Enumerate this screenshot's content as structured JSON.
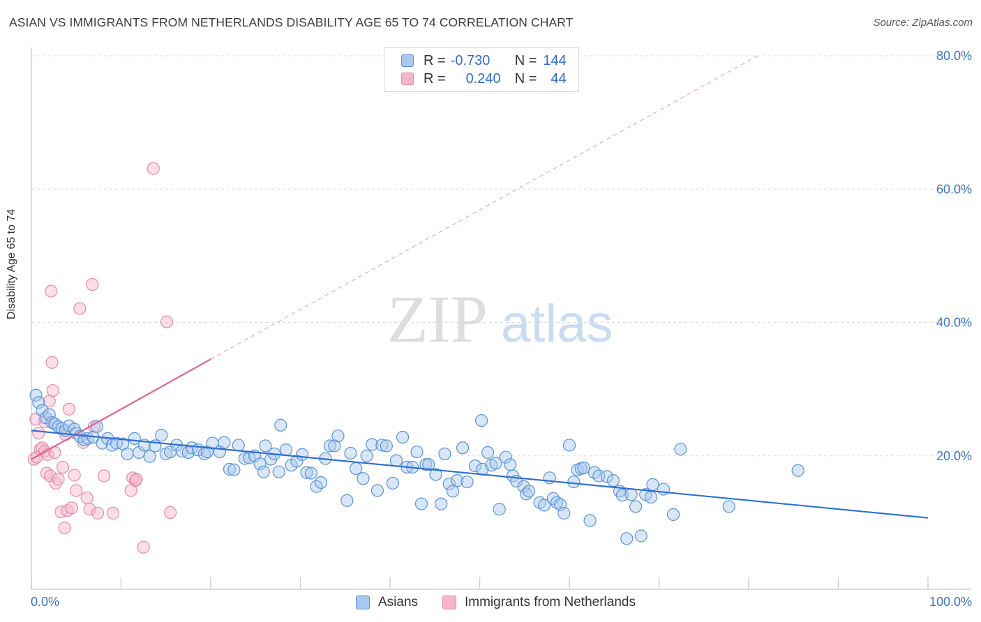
{
  "title": "ASIAN VS IMMIGRANTS FROM NETHERLANDS DISABILITY AGE 65 TO 74 CORRELATION CHART",
  "source": "Source: ZipAtlas.com",
  "watermark": {
    "zip": "ZIP",
    "atlas": "atlas"
  },
  "colors": {
    "blue_fill": "#a9c8f0",
    "blue_stroke": "#5b93d8",
    "blue_line": "#2e6fd0",
    "pink_fill": "#f6b6c9",
    "pink_stroke": "#e98aa7",
    "pink_line": "#e0628f",
    "axis_text": "#3a75c4",
    "grid": "#dcdcdc"
  },
  "stats": {
    "blue": {
      "r_label": "R =",
      "r_value": "-0.730",
      "n_label": "N =",
      "n_value": "144"
    },
    "pink": {
      "r_label": "R =",
      "r_value": "0.240",
      "n_label": "N =",
      "n_value": "44"
    }
  },
  "legend": {
    "asians": "Asians",
    "netherlands": "Immigrants from Netherlands"
  },
  "chart_data": {
    "type": "scatter",
    "xlabel": "",
    "ylabel": "Disability Age 65 to 74",
    "xlim": [
      0,
      105
    ],
    "ylim": [
      0,
      80
    ],
    "x_tick_labels": [
      {
        "value": 0,
        "label": "0.0%"
      },
      {
        "value": 100,
        "label": "100.0%"
      }
    ],
    "y_tick_labels": [
      {
        "value": 20,
        "label": "20.0%"
      },
      {
        "value": 40,
        "label": "40.0%"
      },
      {
        "value": 60,
        "label": "60.0%"
      },
      {
        "value": 80,
        "label": "80.0%"
      }
    ],
    "grid": "horizontal dashed",
    "series": [
      {
        "name": "Asians",
        "trend": [
          [
            0,
            23.8
          ],
          [
            100,
            10.7
          ]
        ],
        "points": [
          [
            0.5,
            29.1
          ],
          [
            0.8,
            28.0
          ],
          [
            1.2,
            26.8
          ],
          [
            1.6,
            25.7
          ],
          [
            2.0,
            26.2
          ],
          [
            2.3,
            25.0
          ],
          [
            2.6,
            24.8
          ],
          [
            3.0,
            24.4
          ],
          [
            3.4,
            24.1
          ],
          [
            3.8,
            23.8
          ],
          [
            4.2,
            24.5
          ],
          [
            4.8,
            24.0
          ],
          [
            5.0,
            23.4
          ],
          [
            5.4,
            22.9
          ],
          [
            5.9,
            22.4
          ],
          [
            6.3,
            22.6
          ],
          [
            6.9,
            22.8
          ],
          [
            7.3,
            24.4
          ],
          [
            7.9,
            21.9
          ],
          [
            8.5,
            22.6
          ],
          [
            9.0,
            21.6
          ],
          [
            9.5,
            21.9
          ],
          [
            10.2,
            21.8
          ],
          [
            10.7,
            20.3
          ],
          [
            11.5,
            22.6
          ],
          [
            12.0,
            20.5
          ],
          [
            12.6,
            21.6
          ],
          [
            13.2,
            19.9
          ],
          [
            13.8,
            21.5
          ],
          [
            14.5,
            23.1
          ],
          [
            15.0,
            20.3
          ],
          [
            15.5,
            20.6
          ],
          [
            16.2,
            21.6
          ],
          [
            16.8,
            20.7
          ],
          [
            17.5,
            20.5
          ],
          [
            17.9,
            21.2
          ],
          [
            18.6,
            20.9
          ],
          [
            19.3,
            20.3
          ],
          [
            19.6,
            20.6
          ],
          [
            20.2,
            21.9
          ],
          [
            21.0,
            20.6
          ],
          [
            21.5,
            22.0
          ],
          [
            22.1,
            18.0
          ],
          [
            22.6,
            17.9
          ],
          [
            23.1,
            21.6
          ],
          [
            23.8,
            19.6
          ],
          [
            24.3,
            19.7
          ],
          [
            24.9,
            20.0
          ],
          [
            25.5,
            18.8
          ],
          [
            25.9,
            17.6
          ],
          [
            26.1,
            21.5
          ],
          [
            26.7,
            19.5
          ],
          [
            27.1,
            20.3
          ],
          [
            27.6,
            17.6
          ],
          [
            27.8,
            24.6
          ],
          [
            28.4,
            20.9
          ],
          [
            29.0,
            18.6
          ],
          [
            29.6,
            19.2
          ],
          [
            30.2,
            20.2
          ],
          [
            30.7,
            17.5
          ],
          [
            31.2,
            17.4
          ],
          [
            31.8,
            15.4
          ],
          [
            32.3,
            16.0
          ],
          [
            32.8,
            19.6
          ],
          [
            33.3,
            21.5
          ],
          [
            33.8,
            21.5
          ],
          [
            34.2,
            23.0
          ],
          [
            35.2,
            13.3
          ],
          [
            35.6,
            20.4
          ],
          [
            36.2,
            18.1
          ],
          [
            37.0,
            16.6
          ],
          [
            37.4,
            20.0
          ],
          [
            38.0,
            21.7
          ],
          [
            38.6,
            14.8
          ],
          [
            39.1,
            21.6
          ],
          [
            39.6,
            21.5
          ],
          [
            40.3,
            15.9
          ],
          [
            40.7,
            19.3
          ],
          [
            41.4,
            22.8
          ],
          [
            41.9,
            18.3
          ],
          [
            42.5,
            18.3
          ],
          [
            43.0,
            20.6
          ],
          [
            43.5,
            12.8
          ],
          [
            44.0,
            18.7
          ],
          [
            44.3,
            18.7
          ],
          [
            45.1,
            17.2
          ],
          [
            45.7,
            12.8
          ],
          [
            46.1,
            20.3
          ],
          [
            46.6,
            15.8
          ],
          [
            47.0,
            14.7
          ],
          [
            47.5,
            16.3
          ],
          [
            48.1,
            21.2
          ],
          [
            48.6,
            16.1
          ],
          [
            49.5,
            18.5
          ],
          [
            50.2,
            25.3
          ],
          [
            50.3,
            18.0
          ],
          [
            50.9,
            20.5
          ],
          [
            51.3,
            18.6
          ],
          [
            51.8,
            18.9
          ],
          [
            52.2,
            12.0
          ],
          [
            52.9,
            19.8
          ],
          [
            53.4,
            18.7
          ],
          [
            53.7,
            17.0
          ],
          [
            54.1,
            16.2
          ],
          [
            54.9,
            15.4
          ],
          [
            55.2,
            14.3
          ],
          [
            55.5,
            14.7
          ],
          [
            56.7,
            13.0
          ],
          [
            57.2,
            12.6
          ],
          [
            57.8,
            16.7
          ],
          [
            58.2,
            13.6
          ],
          [
            58.6,
            13.0
          ],
          [
            59.0,
            12.7
          ],
          [
            59.4,
            11.4
          ],
          [
            60.0,
            21.6
          ],
          [
            60.5,
            16.1
          ],
          [
            60.9,
            17.9
          ],
          [
            61.3,
            18.1
          ],
          [
            61.6,
            18.2
          ],
          [
            62.3,
            10.3
          ],
          [
            62.8,
            17.5
          ],
          [
            63.3,
            17.0
          ],
          [
            64.2,
            16.9
          ],
          [
            64.9,
            16.3
          ],
          [
            65.6,
            14.7
          ],
          [
            65.9,
            14.1
          ],
          [
            66.4,
            7.6
          ],
          [
            66.9,
            14.2
          ],
          [
            67.4,
            12.4
          ],
          [
            68.0,
            8.0
          ],
          [
            68.5,
            14.2
          ],
          [
            69.1,
            13.8
          ],
          [
            69.3,
            15.7
          ],
          [
            70.5,
            15.0
          ],
          [
            71.6,
            11.2
          ],
          [
            72.4,
            21.0
          ],
          [
            77.8,
            12.4
          ],
          [
            85.5,
            17.8
          ]
        ]
      },
      {
        "name": "Immigrants from Netherlands",
        "trend": [
          [
            0,
            19.5
          ],
          [
            20,
            34.5
          ]
        ],
        "trend_extension": [
          [
            20,
            34.5
          ],
          [
            81,
            80.0
          ]
        ],
        "points": [
          [
            0.3,
            19.5
          ],
          [
            0.5,
            25.5
          ],
          [
            0.6,
            19.8
          ],
          [
            0.8,
            23.4
          ],
          [
            1.0,
            21.0
          ],
          [
            1.2,
            21.2
          ],
          [
            1.5,
            20.7
          ],
          [
            1.5,
            25.1
          ],
          [
            1.7,
            17.4
          ],
          [
            1.8,
            20.2
          ],
          [
            2.0,
            28.2
          ],
          [
            2.1,
            17.0
          ],
          [
            2.2,
            44.7
          ],
          [
            2.3,
            34.0
          ],
          [
            2.4,
            29.8
          ],
          [
            2.6,
            20.5
          ],
          [
            2.7,
            15.9
          ],
          [
            3.0,
            16.5
          ],
          [
            3.3,
            11.6
          ],
          [
            3.5,
            18.3
          ],
          [
            3.7,
            9.2
          ],
          [
            3.8,
            23.2
          ],
          [
            4.0,
            11.8
          ],
          [
            4.2,
            27.0
          ],
          [
            4.5,
            12.2
          ],
          [
            4.8,
            17.1
          ],
          [
            5.0,
            14.8
          ],
          [
            5.4,
            42.1
          ],
          [
            5.8,
            22.0
          ],
          [
            6.2,
            13.7
          ],
          [
            6.5,
            12.0
          ],
          [
            6.8,
            45.7
          ],
          [
            7.0,
            24.4
          ],
          [
            7.4,
            11.4
          ],
          [
            8.1,
            17.0
          ],
          [
            9.1,
            11.4
          ],
          [
            11.1,
            14.8
          ],
          [
            11.3,
            16.7
          ],
          [
            11.6,
            16.3
          ],
          [
            11.7,
            16.5
          ],
          [
            12.5,
            6.3
          ],
          [
            13.6,
            63.1
          ],
          [
            15.1,
            40.1
          ],
          [
            15.5,
            11.5
          ]
        ]
      }
    ]
  }
}
